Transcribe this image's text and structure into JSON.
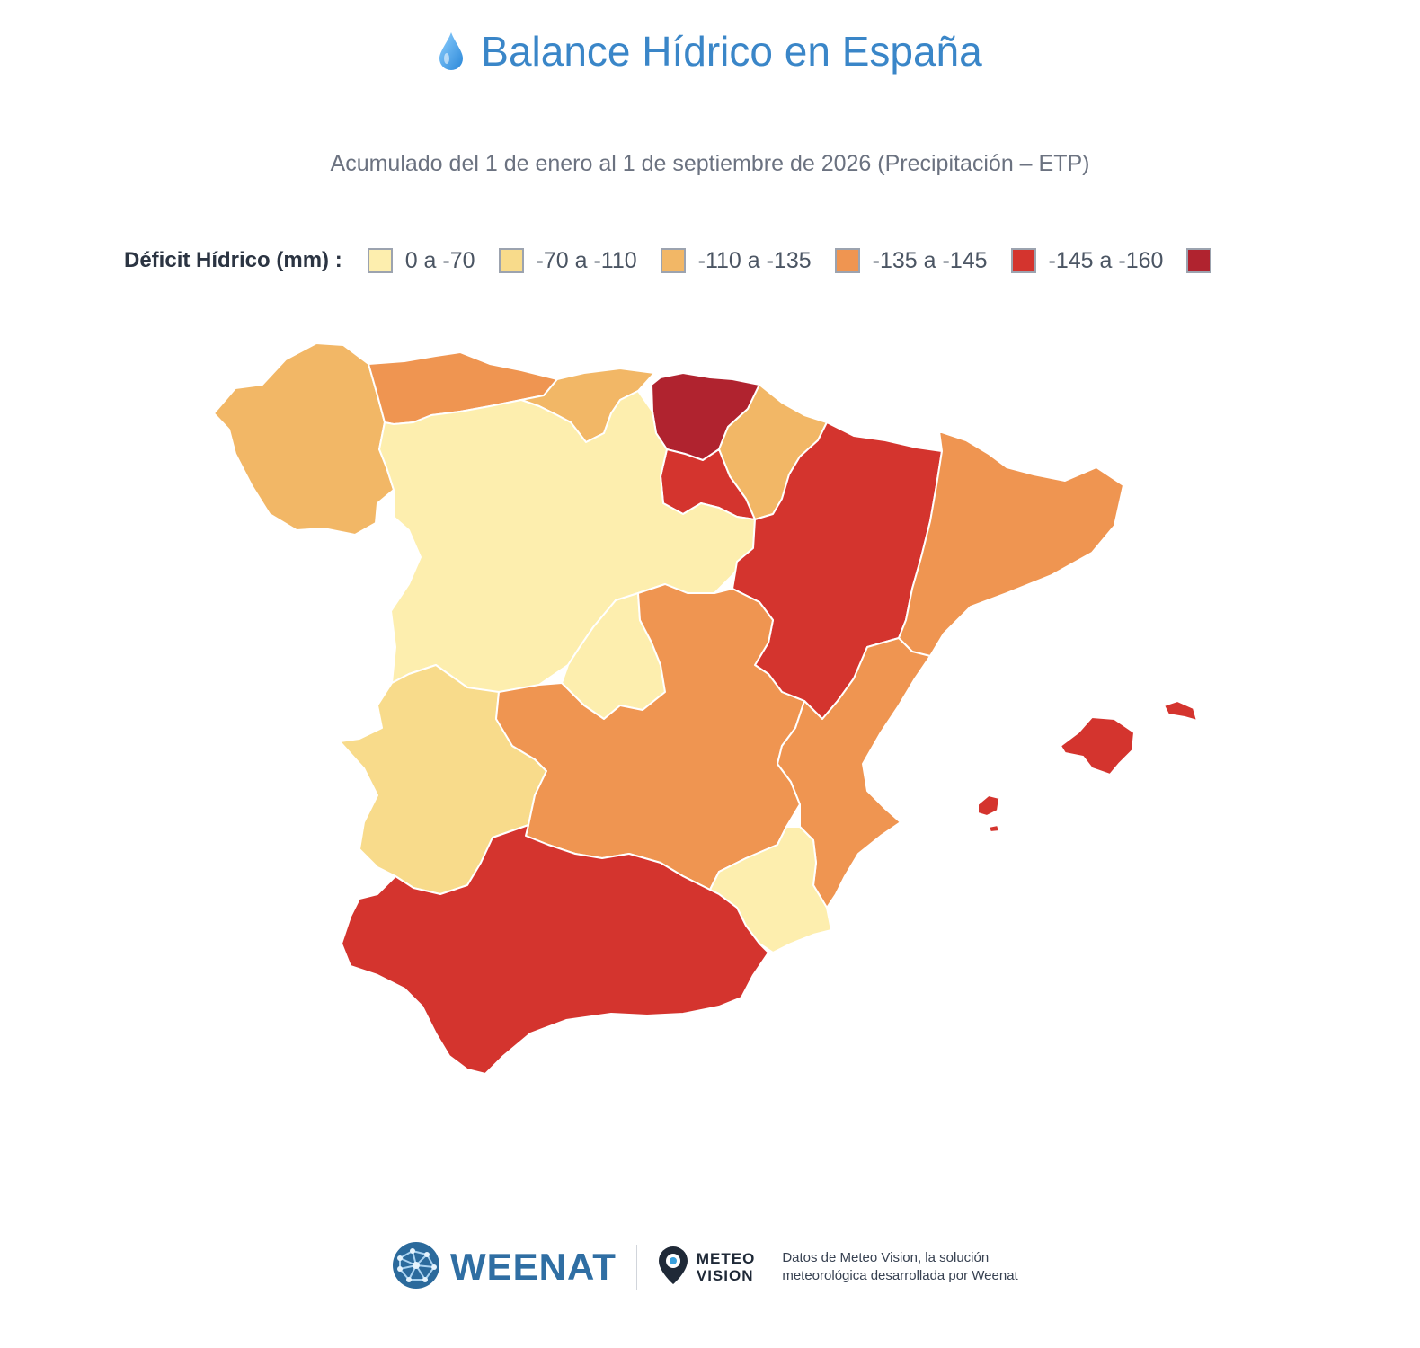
{
  "header": {
    "title": "Balance Hídrico en España",
    "subtitle": "Acumulado del 1 de enero al 1 de septiembre de 2026 (Precipitación – ETP)",
    "title_color": "#3a86c8"
  },
  "legend": {
    "title": "Déficit Hídrico (mm) :",
    "items": [
      {
        "label": "0 a -70",
        "color": "#fdeeae"
      },
      {
        "label": "-70 a -110",
        "color": "#f8db8b"
      },
      {
        "label": "-110 a -135",
        "color": "#f2b766"
      },
      {
        "label": "-135 a -145",
        "color": "#ef9551"
      },
      {
        "label": "-145 a -160",
        "color": "#d4342e"
      },
      {
        "label": "",
        "color": "#b0232f"
      }
    ]
  },
  "map": {
    "regions": [
      {
        "name": "Galicia",
        "class": 2
      },
      {
        "name": "Asturias",
        "class": 3
      },
      {
        "name": "Cantabria",
        "class": 2
      },
      {
        "name": "País Vasco",
        "class": 5
      },
      {
        "name": "Navarra",
        "class": 2
      },
      {
        "name": "La Rioja",
        "class": 4
      },
      {
        "name": "Castilla y León",
        "class": 0
      },
      {
        "name": "Madrid",
        "class": 0
      },
      {
        "name": "Aragón",
        "class": 4
      },
      {
        "name": "Cataluña",
        "class": 3
      },
      {
        "name": "Extremadura",
        "class": 1
      },
      {
        "name": "Castilla-La Mancha",
        "class": 3
      },
      {
        "name": "Comunidad Valenciana",
        "class": 3
      },
      {
        "name": "Murcia",
        "class": 0
      },
      {
        "name": "Andalucía",
        "class": 4
      },
      {
        "name": "Islas Baleares",
        "class": 4
      }
    ]
  },
  "footer": {
    "brand": "WEENAT",
    "meteo_line1": "METEO",
    "meteo_line2": "VISION",
    "note_line1": "Datos de Meteo Vision, la solución",
    "note_line2": "meteorológica desarrollada por Weenat",
    "brand_color": "#2f6ea3"
  },
  "icons": [
    "water-drop-icon",
    "weenat-globe-icon",
    "meteo-vision-pin-icon"
  ]
}
